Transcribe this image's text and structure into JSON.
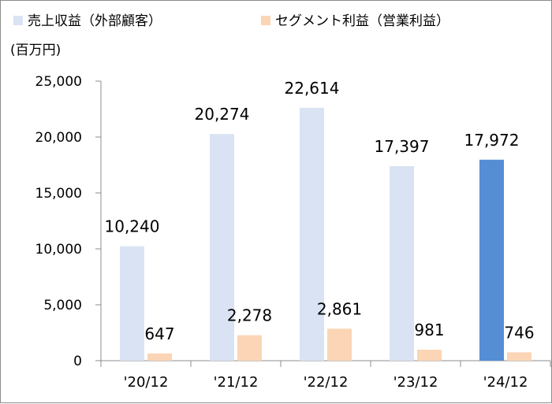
{
  "chart_data": {
    "type": "bar",
    "unit_label": "(百万円)",
    "categories": [
      "'20/12",
      "'21/12",
      "'22/12",
      "'23/12",
      "'24/12"
    ],
    "series": [
      {
        "name": "売上収益（外部顧客）",
        "values": [
          10240,
          20274,
          22614,
          17397,
          17972
        ],
        "data_labels": [
          "10,240",
          "20,274",
          "22,614",
          "17,397",
          "17,972"
        ],
        "color": "#dae3f3",
        "highlight_color": "#558ed5",
        "highlight_index": 4
      },
      {
        "name": "セグメント利益（営業利益）",
        "values": [
          647,
          2278,
          2861,
          981,
          746
        ],
        "data_labels": [
          "647",
          "2,278",
          "2,861",
          "981",
          "746"
        ],
        "color": "#fbd5b5"
      }
    ],
    "ylim": [
      0,
      25000
    ],
    "yticks": [
      0,
      5000,
      10000,
      15000,
      20000,
      25000
    ],
    "ytick_labels": [
      "0",
      "5,000",
      "10,000",
      "15,000",
      "20,000",
      "25,000"
    ],
    "grid": false,
    "legend_position": "top"
  }
}
